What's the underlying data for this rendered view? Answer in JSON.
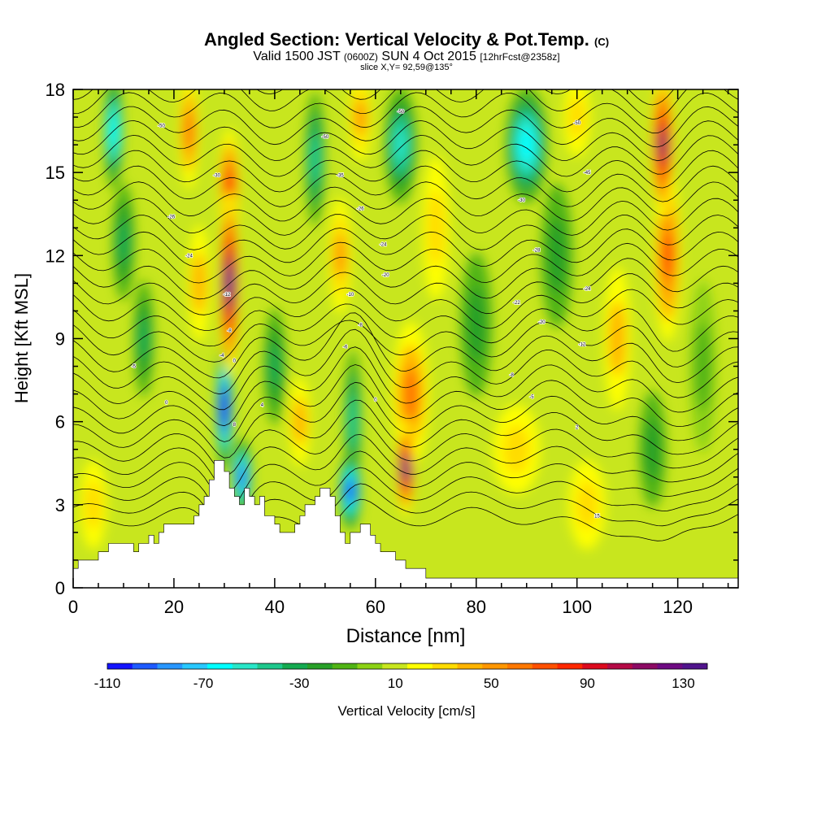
{
  "header": {
    "title_main": "Angled Section: Vertical Velocity & Pot.Temp.",
    "title_suffix": "(C)",
    "valid_prefix": "Valid 1500 JST",
    "valid_utc": "(0600Z)",
    "valid_date": "SUN 4 Oct 2015",
    "forecast_tag": "[12hrFcst@2358z]",
    "slice_info": "slice X,Y= 92,59@135°"
  },
  "chart_data": {
    "type": "heatmap",
    "xlabel": "Distance [nm]",
    "ylabel": "Height [Kft MSL]",
    "xlim": [
      0,
      132
    ],
    "ylim": [
      0,
      18
    ],
    "x_ticks": [
      0,
      20,
      40,
      60,
      80,
      100,
      120
    ],
    "y_ticks": [
      0,
      3,
      6,
      9,
      12,
      15,
      18
    ],
    "colorbar": {
      "label": "Vertical Velocity [cm/s]",
      "min": -110,
      "max": 140,
      "step": 10,
      "tick_labels": [
        "-110",
        "-70",
        "-30",
        "10",
        "50",
        "90",
        "130"
      ],
      "colors": [
        "#1414ff",
        "#1e5aff",
        "#2896ff",
        "#28c8ff",
        "#00ffff",
        "#28e6c8",
        "#1ec88c",
        "#14aa50",
        "#28a028",
        "#50b414",
        "#8cd214",
        "#c8e61e",
        "#ffff00",
        "#ffdc00",
        "#ffb400",
        "#ff9600",
        "#ff7800",
        "#ff5000",
        "#ff2800",
        "#dc0a1e",
        "#b40a46",
        "#8c0a64",
        "#6e0a82",
        "#50148c"
      ]
    },
    "terrain": [
      [
        0,
        0.7
      ],
      [
        1,
        0.7
      ],
      [
        1,
        1.0
      ],
      [
        5,
        1.0
      ],
      [
        5,
        1.3
      ],
      [
        7,
        1.3
      ],
      [
        7,
        1.6
      ],
      [
        12,
        1.6
      ],
      [
        12,
        1.3
      ],
      [
        13,
        1.3
      ],
      [
        13,
        1.6
      ],
      [
        15,
        1.6
      ],
      [
        15,
        1.9
      ],
      [
        16,
        1.9
      ],
      [
        16,
        1.6
      ],
      [
        17,
        1.6
      ],
      [
        17,
        2.0
      ],
      [
        18,
        2.0
      ],
      [
        18,
        2.3
      ],
      [
        24,
        2.3
      ],
      [
        24,
        2.6
      ],
      [
        25,
        2.6
      ],
      [
        25,
        3.0
      ],
      [
        26,
        3.0
      ],
      [
        26,
        3.3
      ],
      [
        27,
        3.3
      ],
      [
        27,
        3.9
      ],
      [
        28,
        3.9
      ],
      [
        28,
        4.6
      ],
      [
        30,
        4.6
      ],
      [
        30,
        4.2
      ],
      [
        31,
        4.2
      ],
      [
        31,
        3.6
      ],
      [
        32,
        3.6
      ],
      [
        32,
        3.3
      ],
      [
        33,
        3.3
      ],
      [
        33,
        3.0
      ],
      [
        34,
        3.0
      ],
      [
        34,
        3.6
      ],
      [
        35,
        3.6
      ],
      [
        35,
        3.3
      ],
      [
        36,
        3.3
      ],
      [
        36,
        3.0
      ],
      [
        37,
        3.0
      ],
      [
        37,
        3.3
      ],
      [
        38,
        3.3
      ],
      [
        38,
        2.6
      ],
      [
        40,
        2.6
      ],
      [
        40,
        2.3
      ],
      [
        41,
        2.3
      ],
      [
        41,
        2.0
      ],
      [
        44,
        2.0
      ],
      [
        44,
        2.3
      ],
      [
        45,
        2.3
      ],
      [
        45,
        2.6
      ],
      [
        46,
        2.6
      ],
      [
        46,
        3.0
      ],
      [
        48,
        3.0
      ],
      [
        48,
        3.3
      ],
      [
        49,
        3.3
      ],
      [
        49,
        3.6
      ],
      [
        51,
        3.6
      ],
      [
        51,
        3.3
      ],
      [
        52,
        3.3
      ],
      [
        52,
        2.6
      ],
      [
        53,
        2.6
      ],
      [
        53,
        2.0
      ],
      [
        54,
        2.0
      ],
      [
        54,
        1.6
      ],
      [
        55,
        1.6
      ],
      [
        55,
        2.0
      ],
      [
        57,
        2.0
      ],
      [
        57,
        2.3
      ],
      [
        59,
        2.3
      ],
      [
        59,
        1.9
      ],
      [
        60,
        1.9
      ],
      [
        60,
        1.6
      ],
      [
        61,
        1.6
      ],
      [
        61,
        1.3
      ],
      [
        64,
        1.3
      ],
      [
        64,
        1.0
      ],
      [
        66,
        1.0
      ],
      [
        66,
        0.7
      ],
      [
        70,
        0.7
      ],
      [
        70,
        0.35
      ],
      [
        132,
        0.35
      ]
    ],
    "velocity_features": [
      {
        "x": 31,
        "y": 11.0,
        "sx": 1.2,
        "sy": 3.2,
        "value": 120
      },
      {
        "x": 31,
        "y": 14.5,
        "sx": 1.3,
        "sy": 2.0,
        "value": 70
      },
      {
        "x": 30,
        "y": 6.5,
        "sx": 1.0,
        "sy": 2.2,
        "value": -110
      },
      {
        "x": 33.5,
        "y": 4.0,
        "sx": 1.3,
        "sy": 1.3,
        "value": -90
      },
      {
        "x": 55,
        "y": 3.5,
        "sx": 1.5,
        "sy": 1.3,
        "value": -100
      },
      {
        "x": 55.5,
        "y": 6.0,
        "sx": 1.0,
        "sy": 2.5,
        "value": -50
      },
      {
        "x": 66,
        "y": 4.3,
        "sx": 1.0,
        "sy": 1.6,
        "value": 110
      },
      {
        "x": 67,
        "y": 7.0,
        "sx": 3.0,
        "sy": 2.5,
        "value": 50
      },
      {
        "x": 117,
        "y": 16.0,
        "sx": 1.5,
        "sy": 2.5,
        "value": 100
      },
      {
        "x": 118,
        "y": 12.0,
        "sx": 2.0,
        "sy": 3.0,
        "value": 60
      },
      {
        "x": 23,
        "y": 16.5,
        "sx": 1.2,
        "sy": 2.0,
        "value": 55
      },
      {
        "x": 25,
        "y": 11.0,
        "sx": 1.5,
        "sy": 2.0,
        "value": 30
      },
      {
        "x": 8,
        "y": 16.5,
        "sx": 1.2,
        "sy": 2.0,
        "value": -70
      },
      {
        "x": 10,
        "y": 12.5,
        "sx": 1.5,
        "sy": 2.0,
        "value": -40
      },
      {
        "x": 14,
        "y": 9.0,
        "sx": 1.3,
        "sy": 2.0,
        "value": -40
      },
      {
        "x": 48,
        "y": 15.5,
        "sx": 1.3,
        "sy": 2.3,
        "value": -50
      },
      {
        "x": 53,
        "y": 12.0,
        "sx": 1.5,
        "sy": 2.0,
        "value": 40
      },
      {
        "x": 57,
        "y": 17.0,
        "sx": 1.5,
        "sy": 1.5,
        "value": 40
      },
      {
        "x": 65,
        "y": 16.0,
        "sx": 2.5,
        "sy": 2.0,
        "value": -60
      },
      {
        "x": 72,
        "y": 13.0,
        "sx": 2.0,
        "sy": 2.5,
        "value": 25
      },
      {
        "x": 90,
        "y": 16.0,
        "sx": 3.5,
        "sy": 2.0,
        "value": -70
      },
      {
        "x": 96,
        "y": 12.0,
        "sx": 2.5,
        "sy": 2.5,
        "value": -30
      },
      {
        "x": 108,
        "y": 9.0,
        "sx": 2.0,
        "sy": 2.5,
        "value": 30
      },
      {
        "x": 115,
        "y": 5.0,
        "sx": 2.0,
        "sy": 2.0,
        "value": -30
      },
      {
        "x": 88,
        "y": 5.0,
        "sx": 4.0,
        "sy": 1.5,
        "value": 25
      },
      {
        "x": 102,
        "y": 3.0,
        "sx": 3.0,
        "sy": 1.5,
        "value": 20
      },
      {
        "x": 40,
        "y": 8.0,
        "sx": 1.5,
        "sy": 2.0,
        "value": -40
      },
      {
        "x": 45,
        "y": 6.0,
        "sx": 1.5,
        "sy": 1.5,
        "value": 30
      },
      {
        "x": 4,
        "y": 3.0,
        "sx": 2.0,
        "sy": 1.5,
        "value": 25
      },
      {
        "x": 125,
        "y": 8.0,
        "sx": 2.0,
        "sy": 3.0,
        "value": -20
      },
      {
        "x": 80,
        "y": 9.5,
        "sx": 2.5,
        "sy": 2.5,
        "value": -30
      },
      {
        "x": 100,
        "y": 17.0,
        "sx": 2.0,
        "sy": 1.3,
        "value": 20
      }
    ],
    "isotherm_labels": [
      {
        "x": 17.5,
        "y": 16.7,
        "text": "-50"
      },
      {
        "x": 50,
        "y": 16.3,
        "text": "-50"
      },
      {
        "x": 65,
        "y": 17.2,
        "text": "-50"
      },
      {
        "x": 100,
        "y": 16.8,
        "text": "-50"
      },
      {
        "x": 28.5,
        "y": 14.9,
        "text": "-30"
      },
      {
        "x": 53,
        "y": 14.9,
        "text": "-35"
      },
      {
        "x": 102,
        "y": 15.0,
        "text": "-45"
      },
      {
        "x": 19.5,
        "y": 13.4,
        "text": "-26"
      },
      {
        "x": 57,
        "y": 13.7,
        "text": "-26"
      },
      {
        "x": 89,
        "y": 14.0,
        "text": "-30"
      },
      {
        "x": 23,
        "y": 12.0,
        "text": "-24"
      },
      {
        "x": 61.5,
        "y": 12.4,
        "text": "-24"
      },
      {
        "x": 92,
        "y": 12.2,
        "text": "-28"
      },
      {
        "x": 30.5,
        "y": 10.6,
        "text": "-12"
      },
      {
        "x": 62,
        "y": 11.3,
        "text": "-20"
      },
      {
        "x": 102,
        "y": 10.8,
        "text": "-24"
      },
      {
        "x": 55,
        "y": 10.6,
        "text": "-10"
      },
      {
        "x": 88,
        "y": 10.3,
        "text": "-22"
      },
      {
        "x": 31,
        "y": 9.3,
        "text": "-8"
      },
      {
        "x": 57,
        "y": 9.5,
        "text": "-8"
      },
      {
        "x": 93,
        "y": 9.6,
        "text": "-20"
      },
      {
        "x": 54,
        "y": 8.7,
        "text": "-6"
      },
      {
        "x": 101,
        "y": 8.8,
        "text": "-12"
      },
      {
        "x": 29.5,
        "y": 8.4,
        "text": "-4"
      },
      {
        "x": 32,
        "y": 8.2,
        "text": "0"
      },
      {
        "x": 12,
        "y": 8.0,
        "text": "-5"
      },
      {
        "x": 87,
        "y": 7.7,
        "text": "-8"
      },
      {
        "x": 18.5,
        "y": 6.7,
        "text": "0"
      },
      {
        "x": 37.5,
        "y": 6.6,
        "text": "4"
      },
      {
        "x": 60,
        "y": 6.8,
        "text": "0"
      },
      {
        "x": 91,
        "y": 6.9,
        "text": "-5"
      },
      {
        "x": 32,
        "y": 5.9,
        "text": "8"
      },
      {
        "x": 100,
        "y": 5.8,
        "text": "2"
      },
      {
        "x": 104,
        "y": 2.6,
        "text": "15"
      }
    ]
  }
}
